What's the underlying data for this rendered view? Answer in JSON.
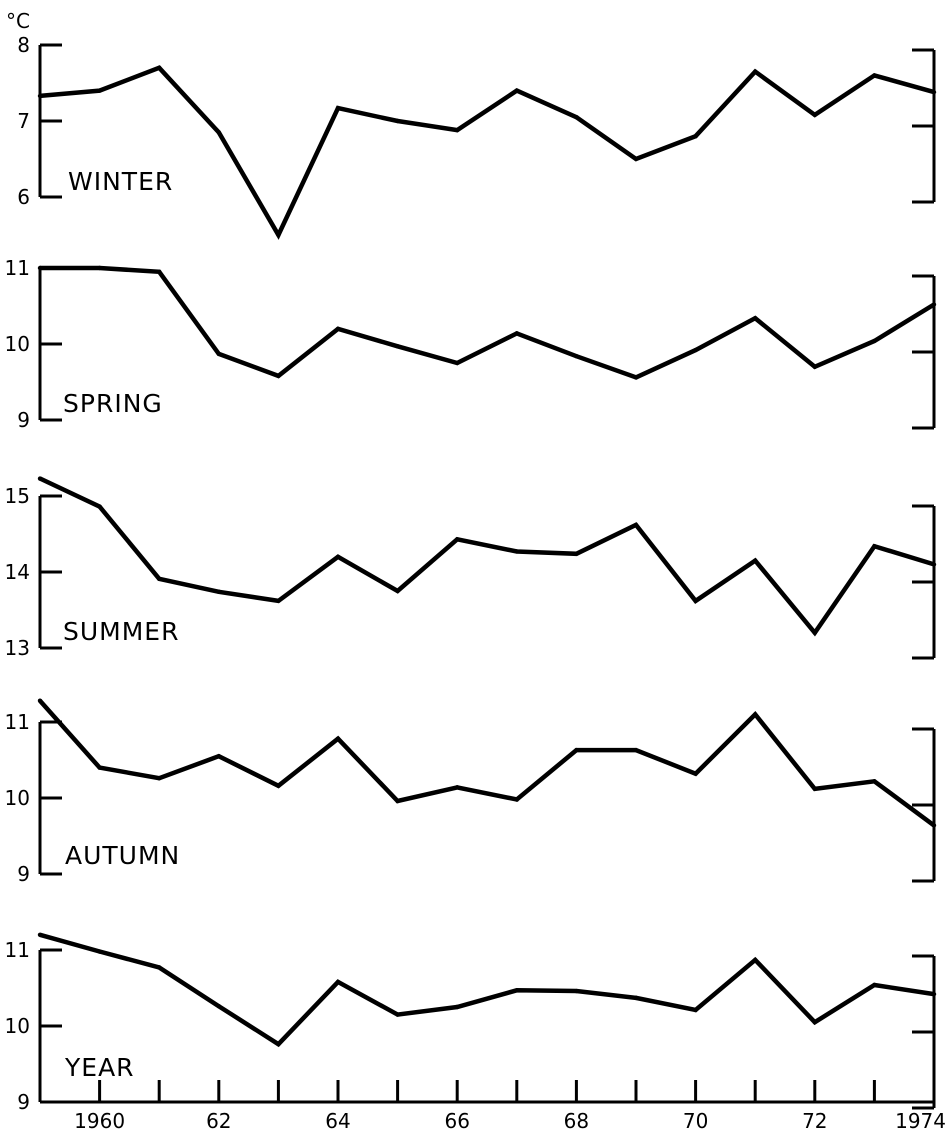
{
  "chart_data": {
    "type": "line",
    "y_unit": "°C",
    "x": [
      1959,
      1960,
      1961,
      1962,
      1963,
      1964,
      1965,
      1966,
      1967,
      1968,
      1969,
      1970,
      1971,
      1972,
      1973,
      1974
    ],
    "x_tick_labels": [
      {
        "x": 1960,
        "label": "1960"
      },
      {
        "x": 1962,
        "label": "62"
      },
      {
        "x": 1964,
        "label": "64"
      },
      {
        "x": 1966,
        "label": "66"
      },
      {
        "x": 1968,
        "label": "68"
      },
      {
        "x": 1970,
        "label": "70"
      },
      {
        "x": 1972,
        "label": "72"
      },
      {
        "x": 1974,
        "label": "1974"
      }
    ],
    "panels": [
      {
        "label": "WINTER",
        "ylim": [
          6,
          8
        ],
        "yticks": [
          6,
          7,
          8
        ],
        "values": [
          7.33,
          7.4,
          7.7,
          6.85,
          5.5,
          7.17,
          7.0,
          6.88,
          7.4,
          7.05,
          6.5,
          6.8,
          7.65,
          7.08,
          7.6,
          7.38
        ]
      },
      {
        "label": "SPRING",
        "ylim": [
          9,
          11
        ],
        "yticks": [
          9,
          10,
          11
        ],
        "values": [
          11.0,
          11.0,
          10.95,
          9.87,
          9.58,
          10.2,
          9.97,
          9.75,
          10.14,
          9.84,
          9.56,
          9.92,
          10.34,
          9.7,
          10.04,
          10.52
        ]
      },
      {
        "label": "SUMMER",
        "ylim": [
          13,
          15
        ],
        "yticks": [
          13,
          14,
          15
        ],
        "values": [
          15.23,
          14.86,
          13.91,
          13.74,
          13.62,
          14.2,
          13.75,
          14.43,
          14.27,
          14.24,
          14.62,
          13.62,
          14.15,
          13.2,
          14.34,
          14.1
        ]
      },
      {
        "label": "AUTUMN",
        "ylim": [
          9,
          11
        ],
        "yticks": [
          9,
          10,
          11
        ],
        "values": [
          11.28,
          10.4,
          10.26,
          10.55,
          10.16,
          10.78,
          9.96,
          10.14,
          9.98,
          10.63,
          10.63,
          10.32,
          11.1,
          10.12,
          10.22,
          9.64
        ]
      },
      {
        "label": "YEAR",
        "ylim": [
          9,
          11
        ],
        "yticks": [
          9,
          10,
          11
        ],
        "values": [
          11.2,
          10.98,
          10.77,
          10.26,
          9.76,
          10.58,
          10.15,
          10.25,
          10.47,
          10.46,
          10.37,
          10.21,
          10.87,
          10.05,
          10.54,
          10.42
        ]
      }
    ]
  }
}
